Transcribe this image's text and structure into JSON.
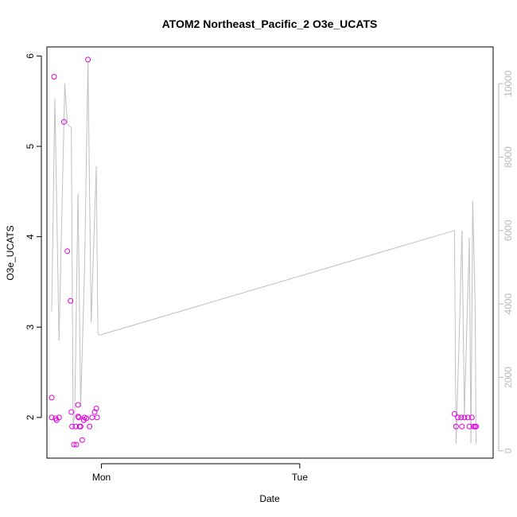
{
  "chart_data": {
    "type": "line",
    "title": "ATOM2 Northeast_Pacific_2 O3e_UCATS",
    "xlabel": "Date",
    "ylabel": "O3e_UCATS",
    "x_axis": {
      "min": -0.275,
      "max": 1.975,
      "ticks": [
        {
          "value": 0,
          "label": "Mon"
        },
        {
          "value": 1,
          "label": "Tue"
        }
      ]
    },
    "y_axis": {
      "min": 1.55,
      "max": 6.1,
      "ticks": [
        2,
        3,
        4,
        5,
        6
      ],
      "tick_labels": [
        "2",
        "3",
        "4",
        "5",
        "6"
      ]
    },
    "secondary_y_axis": {
      "min": -200,
      "max": 11000,
      "ticks": [
        0,
        2000,
        4000,
        6000,
        8000,
        10000
      ],
      "tick_labels": [
        "0",
        "2000",
        "4000",
        "6000",
        "8000",
        "10000"
      ],
      "color": "#b8b8b8"
    },
    "grid": false,
    "series": [
      {
        "type": "scatter",
        "color": "#dd00dd",
        "marker": "open-circle",
        "axis": "left",
        "points": [
          {
            "x": -0.251,
            "y": 2.0
          },
          {
            "x": -0.251,
            "y": 2.22
          },
          {
            "x": -0.239,
            "y": 5.77
          },
          {
            "x": -0.231,
            "y": 1.99
          },
          {
            "x": -0.226,
            "y": 1.97
          },
          {
            "x": -0.214,
            "y": 2.0
          },
          {
            "x": -0.189,
            "y": 5.27
          },
          {
            "x": -0.172,
            "y": 3.84
          },
          {
            "x": -0.156,
            "y": 3.29
          },
          {
            "x": -0.152,
            "y": 2.06
          },
          {
            "x": -0.148,
            "y": 1.9
          },
          {
            "x": -0.139,
            "y": 1.7
          },
          {
            "x": -0.131,
            "y": 1.9
          },
          {
            "x": -0.127,
            "y": 1.7
          },
          {
            "x": -0.118,
            "y": 2.14
          },
          {
            "x": -0.118,
            "y": 2.01
          },
          {
            "x": -0.114,
            "y": 2.0
          },
          {
            "x": -0.11,
            "y": 1.9
          },
          {
            "x": -0.105,
            "y": 1.9
          },
          {
            "x": -0.097,
            "y": 1.75
          },
          {
            "x": -0.089,
            "y": 1.97
          },
          {
            "x": -0.085,
            "y": 2.0
          },
          {
            "x": -0.076,
            "y": 1.99
          },
          {
            "x": -0.068,
            "y": 5.96
          },
          {
            "x": -0.06,
            "y": 1.9
          },
          {
            "x": -0.047,
            "y": 2.0
          },
          {
            "x": -0.034,
            "y": 2.06
          },
          {
            "x": -0.026,
            "y": 2.1
          },
          {
            "x": -0.022,
            "y": 2.0
          },
          {
            "x": 1.78,
            "y": 2.04
          },
          {
            "x": 1.788,
            "y": 1.9
          },
          {
            "x": 1.797,
            "y": 2.0
          },
          {
            "x": 1.813,
            "y": 2.0
          },
          {
            "x": 1.818,
            "y": 1.9
          },
          {
            "x": 1.83,
            "y": 2.0
          },
          {
            "x": 1.847,
            "y": 2.0
          },
          {
            "x": 1.855,
            "y": 1.9
          },
          {
            "x": 1.868,
            "y": 2.0
          },
          {
            "x": 1.876,
            "y": 1.9
          },
          {
            "x": 1.884,
            "y": 1.9
          },
          {
            "x": 1.889,
            "y": 1.9
          }
        ]
      },
      {
        "type": "line",
        "color": "#c0c0c0",
        "axis": "right",
        "points": [
          {
            "x": -0.251,
            "y": 3800
          },
          {
            "x": -0.235,
            "y": 9600
          },
          {
            "x": -0.214,
            "y": 3000
          },
          {
            "x": -0.185,
            "y": 10000
          },
          {
            "x": -0.172,
            "y": 8900
          },
          {
            "x": -0.152,
            "y": 8800
          },
          {
            "x": -0.143,
            "y": 700
          },
          {
            "x": -0.135,
            "y": 1000
          },
          {
            "x": -0.118,
            "y": 7000
          },
          {
            "x": -0.105,
            "y": 1200
          },
          {
            "x": -0.085,
            "y": 5000
          },
          {
            "x": -0.068,
            "y": 10600
          },
          {
            "x": -0.052,
            "y": 3500
          },
          {
            "x": -0.026,
            "y": 7750
          },
          {
            "x": -0.018,
            "y": 3200
          },
          {
            "x": -0.01,
            "y": 3150
          },
          {
            "x": 1.78,
            "y": 6000
          },
          {
            "x": 1.788,
            "y": 200
          },
          {
            "x": 1.806,
            "y": 3500
          },
          {
            "x": 1.818,
            "y": 6000
          },
          {
            "x": 1.83,
            "y": 1000
          },
          {
            "x": 1.855,
            "y": 5800
          },
          {
            "x": 1.863,
            "y": 200
          },
          {
            "x": 1.872,
            "y": 6800
          },
          {
            "x": 1.884,
            "y": 4000
          },
          {
            "x": 1.889,
            "y": 200
          }
        ]
      }
    ]
  }
}
